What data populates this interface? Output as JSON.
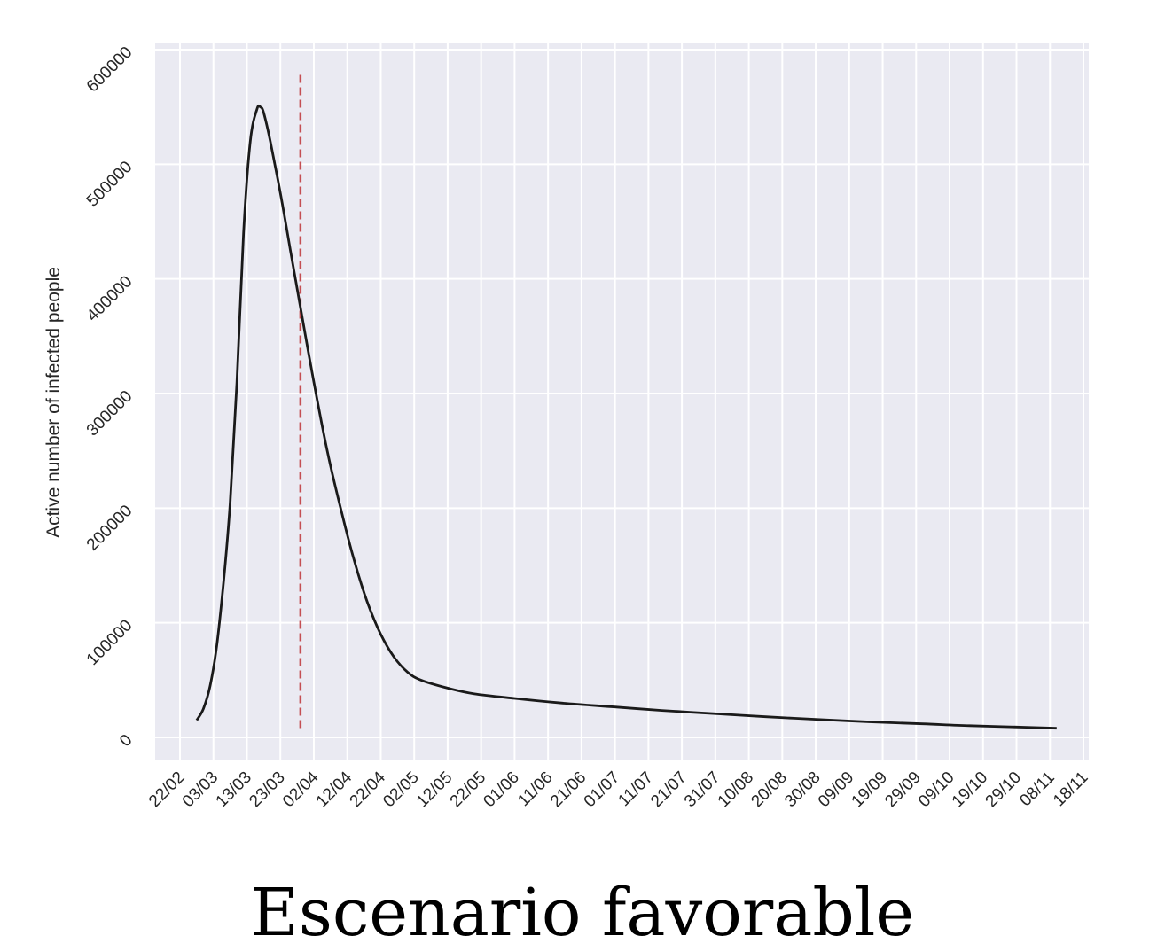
{
  "caption": "Escenario favorable",
  "chart_data": {
    "type": "line",
    "title": "",
    "xlabel": "",
    "ylabel": "Active number of infected people",
    "ylim": [
      -20000,
      600000
    ],
    "y_ticks": [
      0,
      100000,
      200000,
      300000,
      400000,
      500000,
      600000
    ],
    "x_ticks": [
      "22/02",
      "03/03",
      "13/03",
      "23/03",
      "02/04",
      "12/04",
      "22/04",
      "02/05",
      "12/05",
      "22/05",
      "01/06",
      "11/06",
      "21/06",
      "01/07",
      "11/07",
      "21/07",
      "31/07",
      "10/08",
      "20/08",
      "30/08",
      "09/09",
      "19/09",
      "29/09",
      "09/10",
      "19/10",
      "29/10",
      "08/11",
      "18/11"
    ],
    "grid": true,
    "colors": {
      "background": "#eaeaf2",
      "grid": "#ffffff",
      "line": "#1a1a1a",
      "marker_line": "#c44e52"
    },
    "vertical_marker": {
      "x": "29/03",
      "style": "dashed",
      "color": "#c44e52"
    },
    "series": [
      {
        "points": [
          [
            "2020-02-27",
            15000
          ],
          [
            "2020-02-29",
            25000
          ],
          [
            "2020-03-02",
            45000
          ],
          [
            "2020-03-04",
            80000
          ],
          [
            "2020-03-06",
            135000
          ],
          [
            "2020-03-08",
            205000
          ],
          [
            "2020-03-10",
            310000
          ],
          [
            "2020-03-12",
            440000
          ],
          [
            "2020-03-14",
            520000
          ],
          [
            "2020-03-16",
            548000
          ],
          [
            "2020-03-17",
            550000
          ],
          [
            "2020-03-18",
            545000
          ],
          [
            "2020-03-20",
            520000
          ],
          [
            "2020-03-23",
            475000
          ],
          [
            "2020-03-26",
            425000
          ],
          [
            "2020-03-29",
            375000
          ],
          [
            "2020-04-02",
            310000
          ],
          [
            "2020-04-06",
            250000
          ],
          [
            "2020-04-10",
            200000
          ],
          [
            "2020-04-14",
            155000
          ],
          [
            "2020-04-18",
            118000
          ],
          [
            "2020-04-22",
            90000
          ],
          [
            "2020-04-26",
            70000
          ],
          [
            "2020-04-30",
            57000
          ],
          [
            "2020-05-04",
            50000
          ],
          [
            "2020-05-12",
            43000
          ],
          [
            "2020-05-20",
            38000
          ],
          [
            "2020-06-01",
            34000
          ],
          [
            "2020-06-15",
            30000
          ],
          [
            "2020-07-01",
            26500
          ],
          [
            "2020-07-15",
            23500
          ],
          [
            "2020-08-01",
            20500
          ],
          [
            "2020-08-15",
            18000
          ],
          [
            "2020-09-01",
            15500
          ],
          [
            "2020-09-15",
            13500
          ],
          [
            "2020-10-01",
            11800
          ],
          [
            "2020-10-15",
            10200
          ],
          [
            "2020-11-01",
            8800
          ],
          [
            "2020-11-10",
            8000
          ]
        ]
      }
    ]
  }
}
